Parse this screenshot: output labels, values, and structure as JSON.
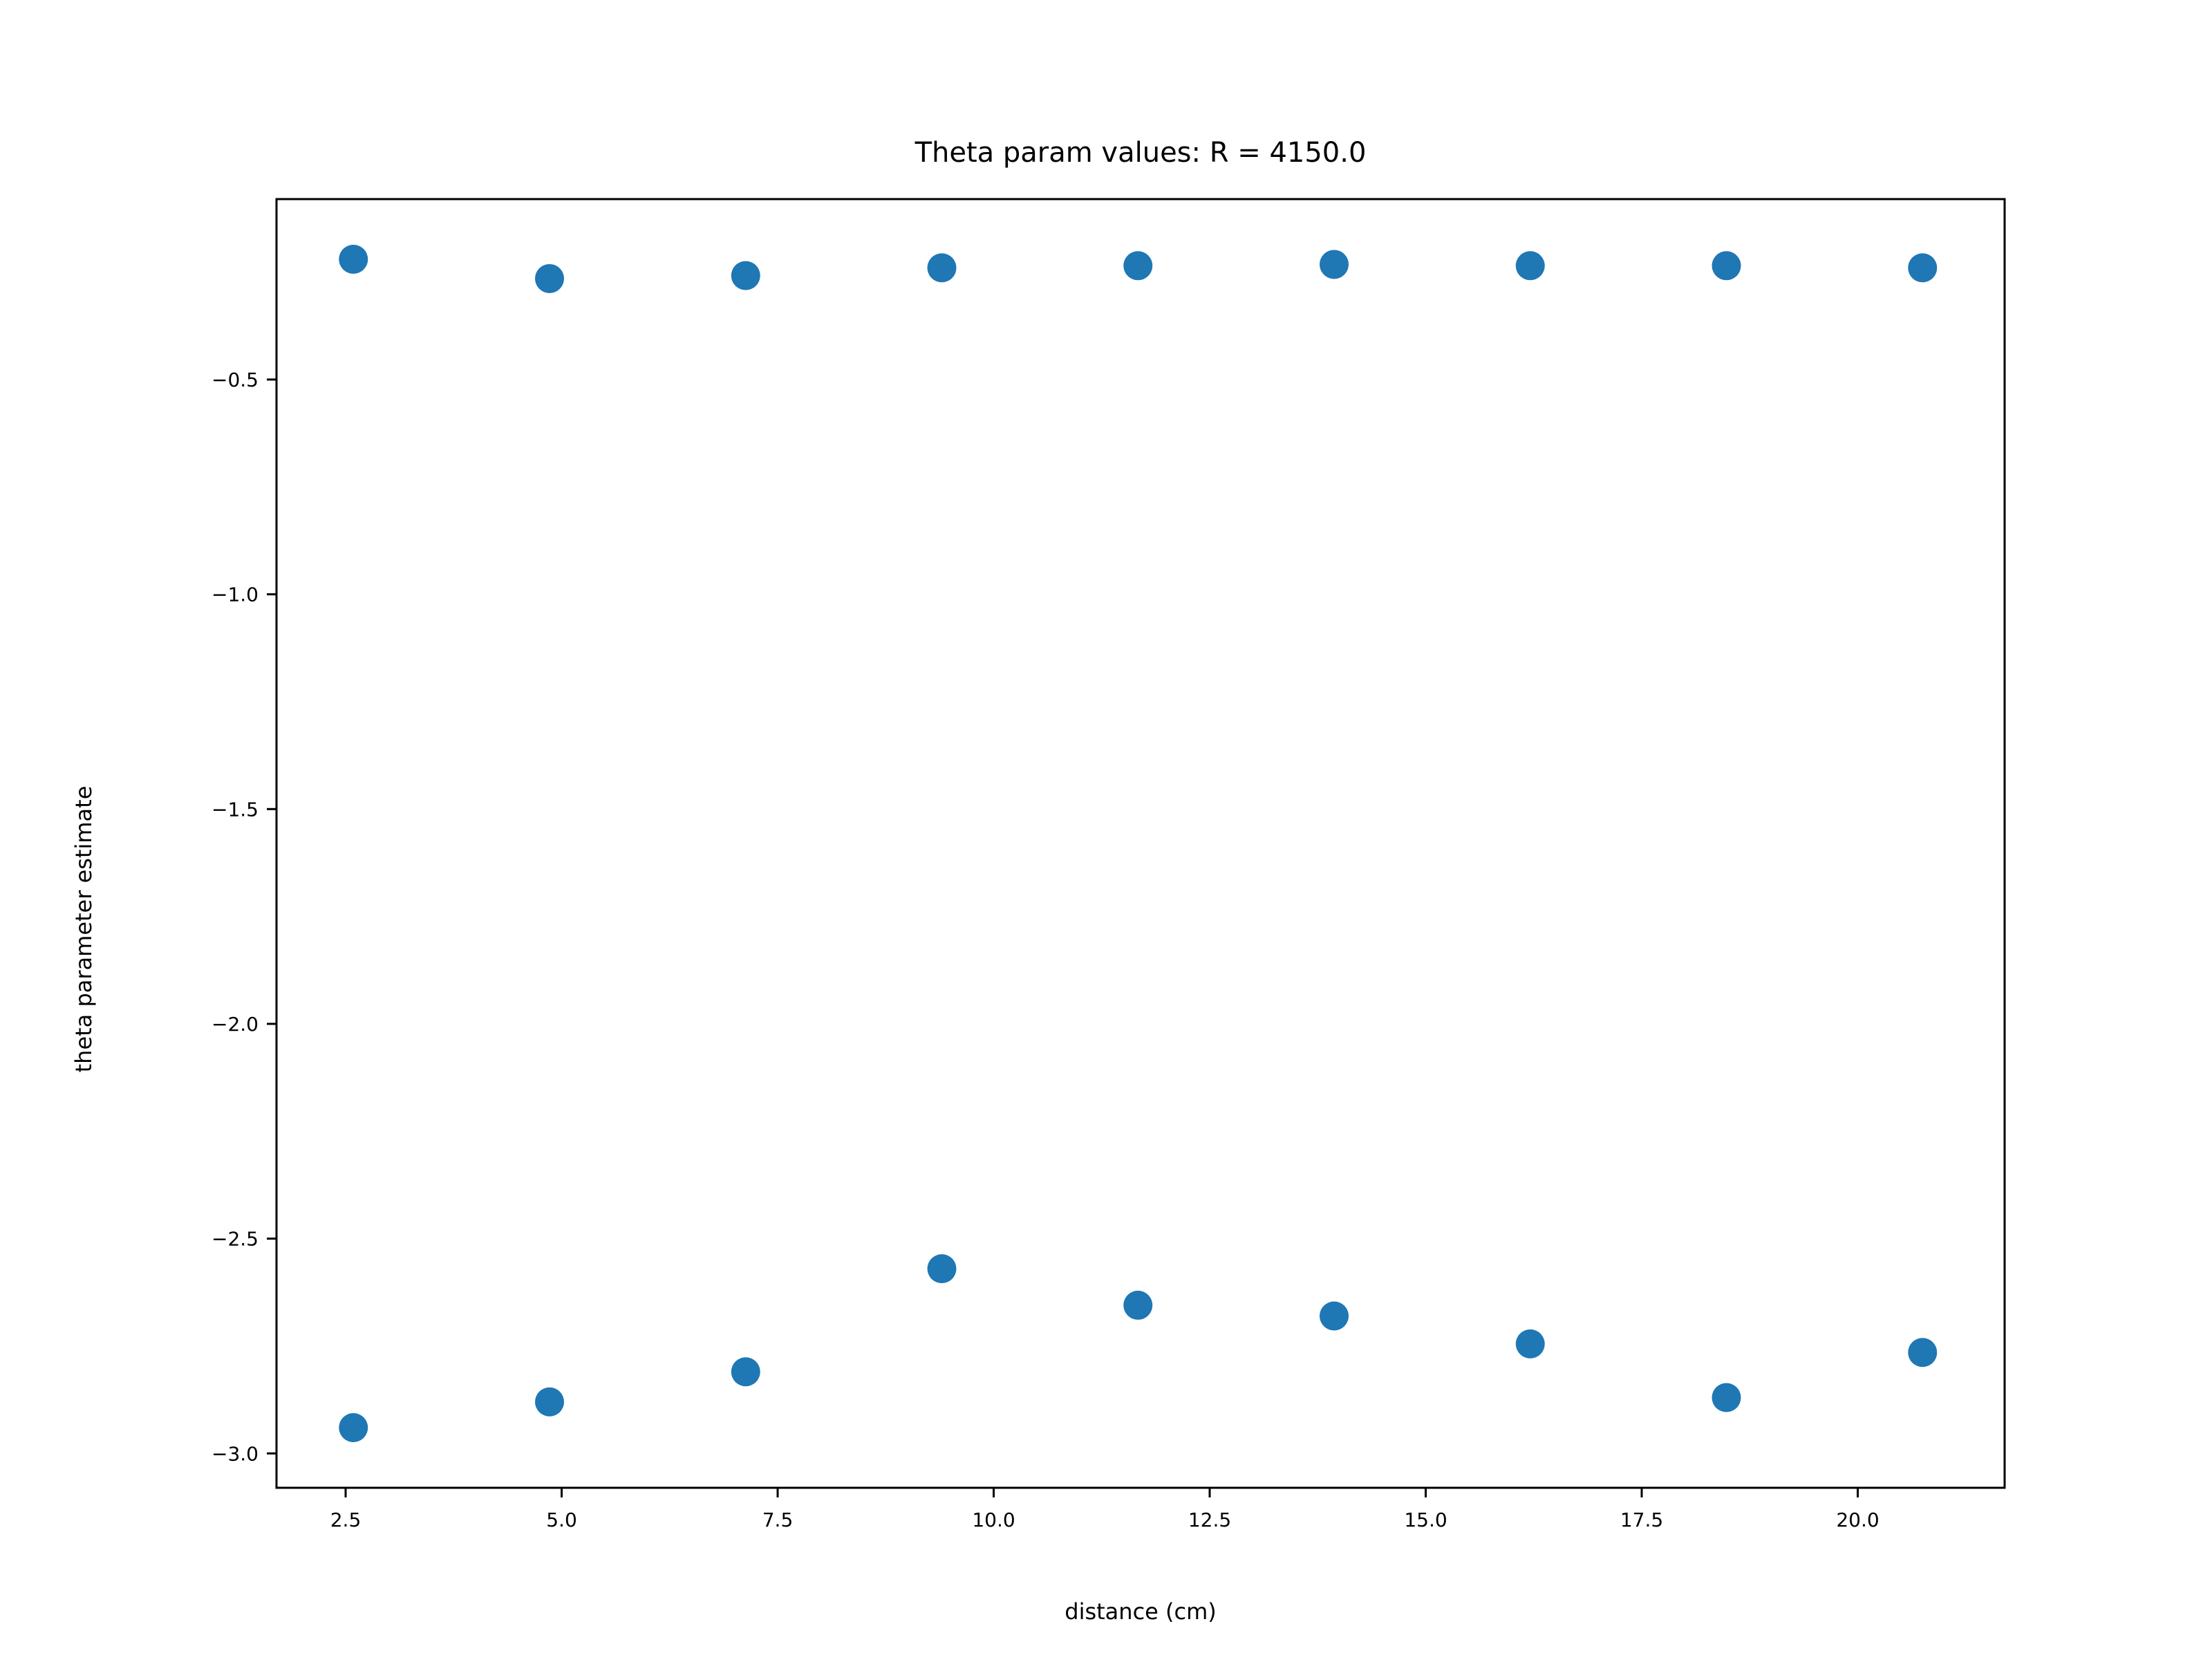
{
  "chart_data": {
    "type": "scatter",
    "title": "Theta param values: R = 4150.0",
    "xlabel": "distance (cm)",
    "ylabel": "theta parameter estimate",
    "xlim": [
      1.7,
      21.7
    ],
    "ylim": [
      -3.08,
      -0.08
    ],
    "xticks": [
      2.5,
      5.0,
      7.5,
      10.0,
      12.5,
      15.0,
      17.5,
      20.0
    ],
    "xtick_labels": [
      "2.5",
      "5.0",
      "7.5",
      "10.0",
      "12.5",
      "15.0",
      "17.5",
      "20.0"
    ],
    "yticks": [
      -0.5,
      -1.0,
      -1.5,
      -2.0,
      -2.5,
      -3.0
    ],
    "ytick_labels": [
      "−0.5",
      "−1.0",
      "−1.5",
      "−2.0",
      "−2.5",
      "−3.0"
    ],
    "grid": false,
    "legend": false,
    "series": [
      {
        "color": "#1f77b4",
        "x": [
          2.59,
          4.86,
          7.13,
          9.4,
          11.67,
          13.94,
          16.21,
          18.48,
          20.75
        ],
        "y": [
          -0.22,
          -0.265,
          -0.258,
          -0.24,
          -0.235,
          -0.232,
          -0.235,
          -0.235,
          -0.24
        ]
      },
      {
        "color": "#1f77b4",
        "x": [
          2.59,
          4.86,
          7.13,
          9.4,
          11.67,
          13.94,
          16.21,
          18.48,
          20.75
        ],
        "y": [
          -2.94,
          -2.88,
          -2.81,
          -2.57,
          -2.655,
          -2.68,
          -2.745,
          -2.87,
          -2.765
        ]
      }
    ]
  }
}
